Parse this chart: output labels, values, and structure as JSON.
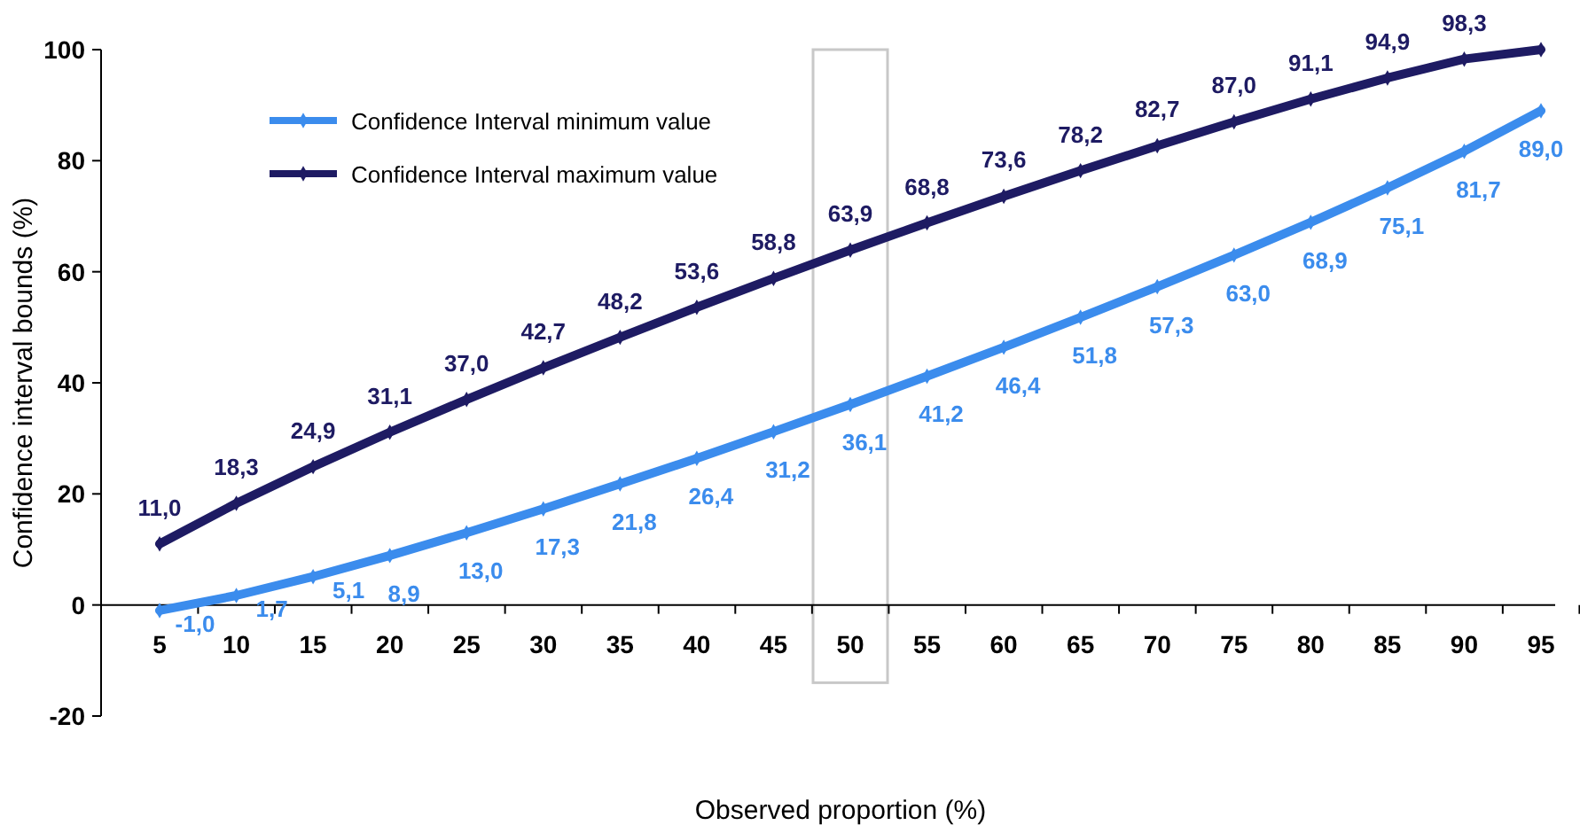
{
  "chart_data": {
    "type": "line",
    "xlabel": "Observed proportion (%)",
    "ylabel": "Confidence interval bounds (%)",
    "categories": [
      "5",
      "10",
      "15",
      "20",
      "25",
      "30",
      "35",
      "40",
      "45",
      "50",
      "55",
      "60",
      "65",
      "70",
      "75",
      "80",
      "85",
      "90",
      "95"
    ],
    "ylim": [
      -20,
      100
    ],
    "yticks": [
      -20,
      0,
      20,
      40,
      60,
      80,
      100
    ],
    "grid": false,
    "legend": "top left",
    "marker": "diamond",
    "line_style": "solid",
    "series": [
      {
        "name": "Confidence Interval minimum value",
        "color": "#3b8ced",
        "values": [
          -1.0,
          1.7,
          5.1,
          8.9,
          13.0,
          17.3,
          21.8,
          26.4,
          31.2,
          36.1,
          41.2,
          46.4,
          51.8,
          57.3,
          63.0,
          68.9,
          75.1,
          81.7,
          89.0
        ],
        "value_labels": [
          "-1,0",
          "1,7",
          "5,1",
          "8,9",
          "13,0",
          "17,3",
          "21,8",
          "26,4",
          "31,2",
          "36,1",
          "41,2",
          "46,4",
          "51,8",
          "57,3",
          "63,0",
          "68,9",
          "75,1",
          "81,7",
          "89,0"
        ]
      },
      {
        "name": "Confidence Interval maximum value",
        "color": "#1e1b63",
        "values": [
          11.0,
          18.3,
          24.9,
          31.1,
          37.0,
          42.7,
          48.2,
          53.6,
          58.8,
          63.9,
          68.8,
          73.6,
          78.2,
          82.7,
          87.0,
          91.1,
          94.9,
          98.3,
          100
        ],
        "value_labels": [
          "11,0",
          "18,3",
          "24,9",
          "31,1",
          "37,0",
          "42,7",
          "48,2",
          "53,6",
          "58,8",
          "63,9",
          "68,8",
          "73,6",
          "78,2",
          "82,7",
          "87,0",
          "91,1",
          "94,9",
          "98,3",
          null
        ]
      }
    ]
  }
}
